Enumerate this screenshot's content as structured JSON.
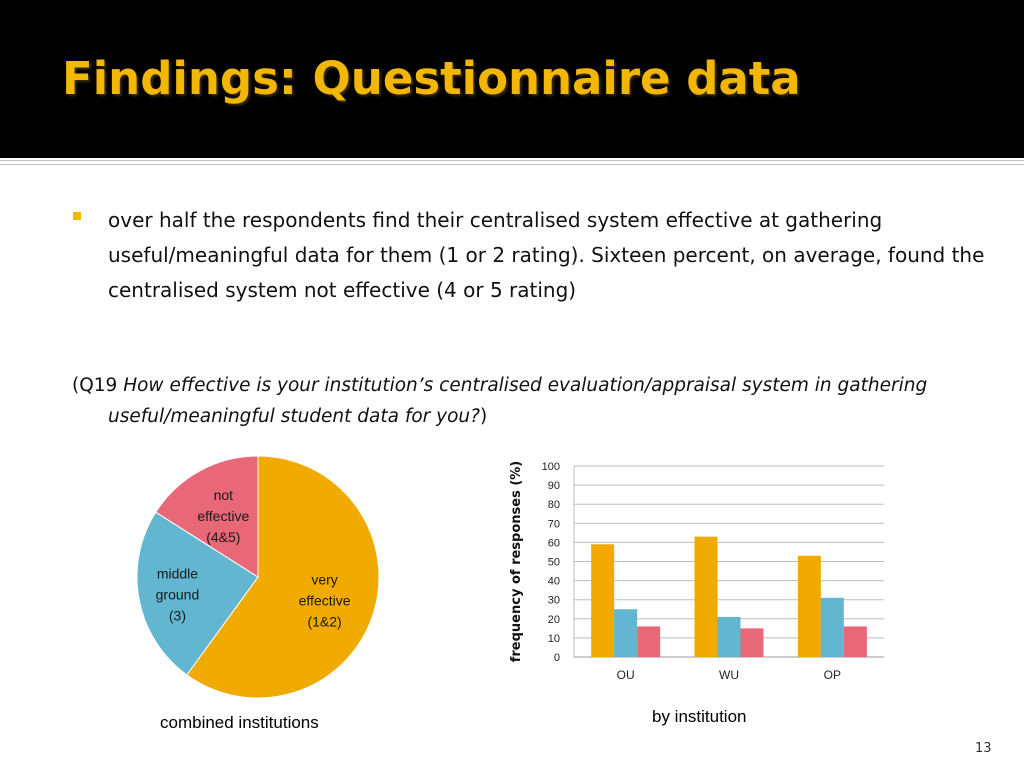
{
  "slide": {
    "title": "Findings: Questionnaire data",
    "bullet": "over half the respondents find their centralised system effective at gathering useful/meaningful data for them (1 or 2 rating). Sixteen percent, on average, found the centralised system not effective (4 or 5 rating)",
    "question_prefix": "(Q19 ",
    "question_italic": "How effective is your institution’s centralised evaluation/appraisal system in gathering useful/meaningful student data for you?",
    "question_suffix": ")",
    "page_number": "13"
  },
  "colors": {
    "accent": "#f2b705",
    "very_effective": "#f0aa00",
    "middle_ground": "#62b6d0",
    "not_effective": "#e86878"
  },
  "chart_data": [
    {
      "type": "pie",
      "caption": "combined institutions",
      "slices": [
        {
          "label_lines": [
            "very",
            "effective",
            "(1&2)"
          ],
          "value": 60
        },
        {
          "label_lines": [
            "middle",
            "ground",
            "(3)"
          ],
          "value": 24
        },
        {
          "label_lines": [
            "not",
            "effective",
            "(4&5)"
          ],
          "value": 16
        }
      ]
    },
    {
      "type": "bar",
      "caption": "by institution",
      "ylabel": "frequency of responses (%)",
      "ylim": [
        0,
        100
      ],
      "yticks": [
        0,
        10,
        20,
        30,
        40,
        50,
        60,
        70,
        80,
        90,
        100
      ],
      "grid": true,
      "categories": [
        "OU",
        "WU",
        "OP"
      ],
      "series": [
        {
          "values": [
            59,
            63,
            53
          ]
        },
        {
          "values": [
            25,
            21,
            31
          ]
        },
        {
          "values": [
            16,
            15,
            16
          ]
        }
      ]
    }
  ]
}
